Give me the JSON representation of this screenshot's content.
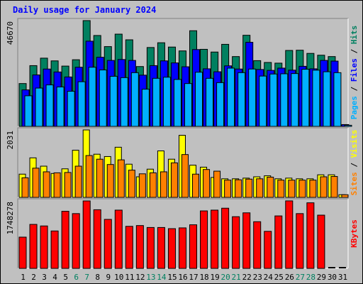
{
  "chart_data": {
    "type": "bar",
    "title": "Daily usage for January 2024",
    "categories": [
      "1",
      "2",
      "3",
      "4",
      "5",
      "6",
      "7",
      "8",
      "9",
      "10",
      "11",
      "12",
      "13",
      "14",
      "15",
      "16",
      "17",
      "18",
      "19",
      "20",
      "21",
      "22",
      "23",
      "24",
      "25",
      "26",
      "27",
      "28",
      "29",
      "30",
      "31"
    ],
    "weekend_days": [
      "6",
      "7",
      "13",
      "14",
      "20",
      "21",
      "27",
      "28"
    ],
    "panels": [
      {
        "name": "hits-files-pages",
        "ymax_label": "46670",
        "ymax": 46670,
        "axis_title_parts": [
          {
            "text": "Pages",
            "color": "#00b0ff"
          },
          {
            "text": " / ",
            "color": "#000000"
          },
          {
            "text": "Files",
            "color": "#0000ff"
          },
          {
            "text": " / ",
            "color": "#000000"
          },
          {
            "text": "Hits",
            "color": "#008060"
          }
        ],
        "series": [
          {
            "name": "Hits",
            "color": "#008060",
            "values": [
              18900,
              26800,
              30100,
              28900,
              26600,
              29400,
              46670,
              40100,
              35200,
              40700,
              38200,
              26400,
              34800,
              36900,
              35000,
              33300,
              42200,
              34000,
              32800,
              36200,
              30800,
              40200,
              29000,
              28200,
              27900,
              33500,
              33600,
              32200,
              31400,
              30800,
              0
            ]
          },
          {
            "name": "Files",
            "color": "#0000ff",
            "values": [
              16100,
              22700,
              25300,
              24000,
              21800,
              26100,
              37600,
              30500,
              29100,
              29500,
              29100,
              22600,
              26800,
              28900,
              28000,
              26300,
              33900,
              25400,
              24100,
              26700,
              25300,
              37100,
              25100,
              24700,
              25700,
              24800,
              26500,
              25400,
              29100,
              28800,
              800
            ]
          },
          {
            "name": "Pages",
            "color": "#00b0ff",
            "values": [
              13500,
              16900,
              18300,
              17400,
              15500,
              19700,
              26100,
              24900,
              22100,
              21500,
              23700,
              16400,
              21200,
              21700,
              20700,
              18900,
              23900,
              21200,
              19300,
              25700,
              23700,
              25300,
              22200,
              23100,
              23200,
              23300,
              25200,
              24800,
              24100,
              23700,
              500
            ]
          }
        ]
      },
      {
        "name": "visits-sites",
        "ymax_label": "2031",
        "ymax": 2031,
        "axis_title_parts": [
          {
            "text": "Sites",
            "color": "#ff8000"
          },
          {
            "text": " / ",
            "color": "#000000"
          },
          {
            "text": "Visits",
            "color": "#ffff00"
          }
        ],
        "series": [
          {
            "name": "Visits",
            "color": "#ffff00",
            "values": [
              700,
              1190,
              940,
              720,
              860,
              1420,
              2031,
              1300,
              1230,
              1510,
              1000,
              620,
              850,
              1400,
              1150,
              1870,
              970,
              910,
              600,
              560,
              560,
              580,
              620,
              650,
              560,
              580,
              560,
              560,
              680,
              680,
              80
            ]
          },
          {
            "name": "Sites",
            "color": "#ff8000",
            "values": [
              590,
              880,
              770,
              740,
              750,
              940,
              1260,
              1150,
              990,
              1130,
              820,
              710,
              740,
              770,
              1040,
              1290,
              700,
              840,
              790,
              520,
              530,
              550,
              560,
              610,
              520,
              520,
              520,
              520,
              620,
              630,
              80
            ]
          }
        ]
      },
      {
        "name": "kbytes",
        "ymax_label": "1748278",
        "ymax": 1748278,
        "axis_title_parts": [
          {
            "text": "KBytes",
            "color": "#ff0000"
          }
        ],
        "series": [
          {
            "name": "KBytes",
            "color": "#ff0000",
            "values": [
              810000,
              1140000,
              1100000,
              970000,
              1480000,
              1420000,
              1748278,
              1520000,
              1270000,
              1510000,
              1090000,
              1110000,
              1060000,
              1060000,
              1030000,
              1050000,
              1130000,
              1490000,
              1510000,
              1560000,
              1340000,
              1440000,
              1210000,
              960000,
              1360000,
              1750000,
              1420000,
              1700000,
              1380000,
              0,
              0
            ]
          }
        ]
      }
    ]
  },
  "colors": {
    "background": "#c0c0c0",
    "frame": "#a8a8a8",
    "weekend_label": "#008060",
    "weekday_label": "#000000"
  }
}
